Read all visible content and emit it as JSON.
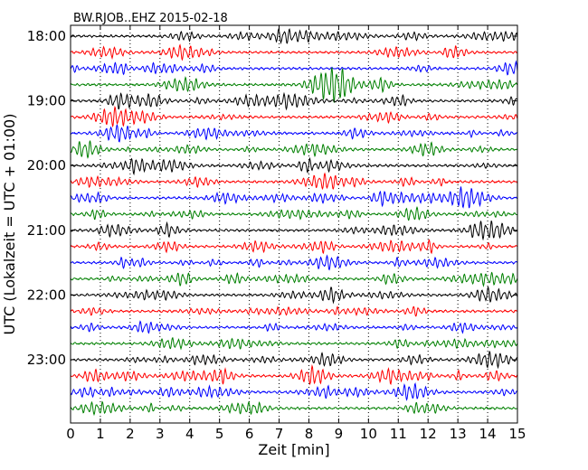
{
  "chart_data": {
    "type": "line",
    "title": "BW.RJOB..EHZ 2015-02-18",
    "xlabel": "Zeit  [min]",
    "ylabel": "UTC (Lokalzeit = UTC + 01:00)",
    "xlim": [
      0,
      15
    ],
    "x_ticks": [
      "0",
      "1",
      "2",
      "3",
      "4",
      "5",
      "6",
      "7",
      "8",
      "9",
      "10",
      "11",
      "12",
      "13",
      "14",
      "15"
    ],
    "y_tick_labels": [
      "18:00",
      "19:00",
      "20:00",
      "21:00",
      "22:00",
      "23:00"
    ],
    "grid": "vertical dotted",
    "trace_colors": [
      "#000000",
      "#ff0000",
      "#0000ff",
      "#008000"
    ],
    "trace_count": 24
  }
}
